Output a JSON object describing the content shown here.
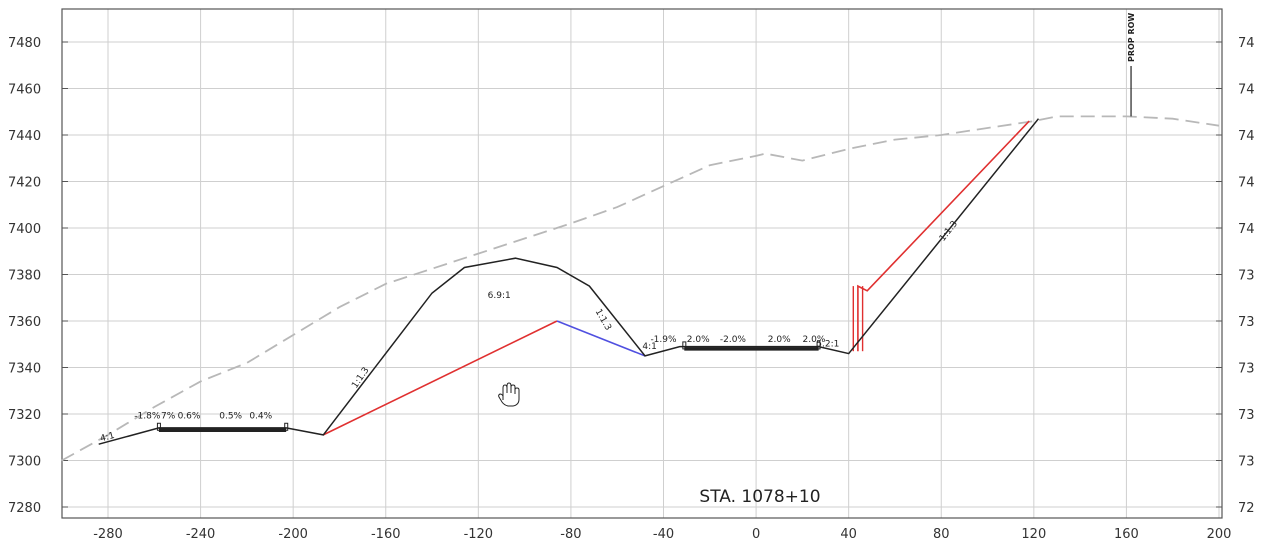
{
  "section": {
    "station_label": "STA. 1078+10",
    "row_label": "PROP ROW"
  },
  "axes": {
    "x_ticks": [
      -280,
      -240,
      -200,
      -160,
      -120,
      -80,
      -40,
      0,
      40,
      80,
      120,
      160,
      200
    ],
    "y_ticks": [
      7280,
      7300,
      7320,
      7340,
      7360,
      7380,
      7400,
      7420,
      7440,
      7460,
      7480
    ],
    "right_ticks": [
      "72",
      "73",
      "73",
      "73",
      "73",
      "73",
      "74",
      "74",
      "74",
      "74",
      "74"
    ],
    "x_range": [
      -300,
      200
    ],
    "y_range": [
      7275,
      7495
    ],
    "grid": true
  },
  "colors": {
    "existing_ground": "#b8b8b8",
    "design": "#222222",
    "red": "#e03030",
    "blue": "#5050e0",
    "grid": "#cfcfcf"
  },
  "profiles": {
    "existing_ground": [
      [
        -300,
        7300
      ],
      [
        -280,
        7311
      ],
      [
        -260,
        7323
      ],
      [
        -240,
        7334
      ],
      [
        -220,
        7342
      ],
      [
        -180,
        7366
      ],
      [
        -160,
        7376
      ],
      [
        -120,
        7389
      ],
      [
        -80,
        7402
      ],
      [
        -60,
        7409
      ],
      [
        -40,
        7418
      ],
      [
        -20,
        7427
      ],
      [
        0,
        7431
      ],
      [
        4,
        7432
      ],
      [
        20,
        7429
      ],
      [
        40,
        7434
      ],
      [
        60,
        7438
      ],
      [
        80,
        7440
      ],
      [
        100,
        7443
      ],
      [
        120,
        7446
      ],
      [
        130,
        7448
      ],
      [
        140,
        7448
      ],
      [
        160,
        7448
      ],
      [
        180,
        7447
      ],
      [
        200,
        7444
      ]
    ],
    "design_left": [
      [
        -284,
        7307
      ],
      [
        -258,
        7314
      ],
      [
        -203,
        7314
      ],
      [
        -187,
        7311
      ],
      [
        -140,
        7372
      ],
      [
        -126,
        7383
      ],
      [
        -104,
        7387
      ],
      [
        -86,
        7383
      ],
      [
        -72,
        7375
      ],
      [
        -48,
        7345
      ],
      [
        -33,
        7349
      ],
      [
        27,
        7349
      ],
      [
        40,
        7346
      ],
      [
        122,
        7447
      ]
    ],
    "red_left": [
      [
        -187,
        7311
      ],
      [
        -86,
        7360
      ]
    ],
    "blue_segment": [
      [
        -86,
        7360
      ],
      [
        -48,
        7345
      ]
    ],
    "red_right": [
      [
        44,
        7347
      ],
      [
        44,
        7375
      ],
      [
        48,
        7373
      ],
      [
        118,
        7446
      ]
    ],
    "red_verticals": [
      [
        [
          42,
          7347
        ],
        [
          42,
          7375
        ]
      ],
      [
        [
          46,
          7347
        ],
        [
          46,
          7375
        ]
      ]
    ],
    "curb_left": [
      [
        -258,
        7313
      ],
      [
        -203,
        7313
      ]
    ],
    "curb_right": [
      [
        -31,
        7348
      ],
      [
        27,
        7348
      ]
    ]
  },
  "annotations": [
    {
      "text": "4:1",
      "x": -280,
      "y": 7309,
      "rot": -15
    },
    {
      "text": "-1.8%",
      "x": -263,
      "y": 7318,
      "rot": 0
    },
    {
      "text": "7%",
      "x": -254,
      "y": 7318,
      "rot": 0
    },
    {
      "text": "0.6%",
      "x": -245,
      "y": 7318,
      "rot": 0
    },
    {
      "text": "0.5%",
      "x": -227,
      "y": 7318,
      "rot": 0
    },
    {
      "text": "0.4%",
      "x": -214,
      "y": 7318,
      "rot": 0
    },
    {
      "text": "1:1.3",
      "x": -170,
      "y": 7335,
      "rot": -56
    },
    {
      "text": "6.9:1",
      "x": -111,
      "y": 7370,
      "rot": 0
    },
    {
      "text": "1:1.3",
      "x": -67,
      "y": 7360,
      "rot": 60
    },
    {
      "text": "4:1",
      "x": -46,
      "y": 7348,
      "rot": 0
    },
    {
      "text": "-1.9%",
      "x": -40,
      "y": 7351,
      "rot": 0
    },
    {
      "text": "2.0%",
      "x": -25,
      "y": 7351,
      "rot": 0
    },
    {
      "text": "-2.0%",
      "x": -10,
      "y": 7351,
      "rot": 0
    },
    {
      "text": "2.0%",
      "x": 10,
      "y": 7351,
      "rot": 0
    },
    {
      "text": "2.0%",
      "x": 25,
      "y": 7351,
      "rot": 0
    },
    {
      "text": "5.2:1",
      "x": 31,
      "y": 7349,
      "rot": 0
    },
    {
      "text": "1:1.3",
      "x": 84,
      "y": 7398,
      "rot": -52
    }
  ]
}
